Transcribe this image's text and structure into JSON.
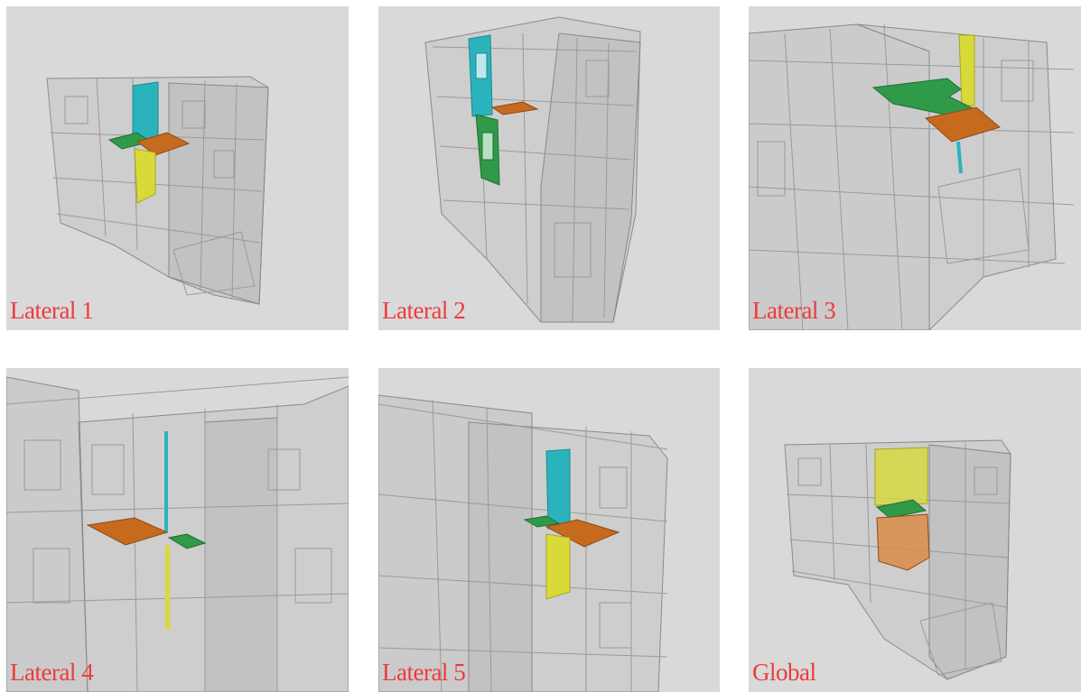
{
  "panels": [
    {
      "id": "lateral-1",
      "label": "Lateral 1"
    },
    {
      "id": "lateral-2",
      "label": "Lateral 2"
    },
    {
      "id": "lateral-3",
      "label": "Lateral 3"
    },
    {
      "id": "lateral-4",
      "label": "Lateral 4"
    },
    {
      "id": "lateral-5",
      "label": "Lateral 5"
    },
    {
      "id": "global",
      "label": "Global"
    }
  ],
  "colors": {
    "cyan": "#2bb3bd",
    "green": "#2f9a48",
    "orange": "#c66a1e",
    "yellow": "#d9d93a",
    "label": "#ee3b3b"
  }
}
